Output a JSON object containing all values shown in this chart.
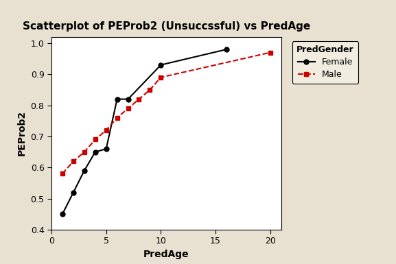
{
  "title": "Scatterplot of PEProb2 (Unsuccssful) vs PredAge",
  "xlabel": "PredAge",
  "ylabel": "PEProb2",
  "background_color": "#e8e0d0",
  "plot_background_color": "#ffffff",
  "female_x": [
    1,
    2,
    3,
    4,
    5,
    6,
    7,
    10,
    16
  ],
  "female_y": [
    0.45,
    0.52,
    0.59,
    0.65,
    0.66,
    0.82,
    0.82,
    0.93,
    0.98
  ],
  "male_x": [
    1,
    2,
    3,
    4,
    5,
    6,
    7,
    8,
    9,
    10,
    20
  ],
  "male_y": [
    0.58,
    0.62,
    0.65,
    0.69,
    0.72,
    0.76,
    0.79,
    0.82,
    0.85,
    0.89,
    0.97
  ],
  "female_color": "#000000",
  "male_color": "#cc0000",
  "female_label": "Female",
  "male_label": "Male",
  "legend_title": "PredGender",
  "xlim": [
    0,
    21
  ],
  "ylim": [
    0.4,
    1.02
  ],
  "xticks": [
    0,
    5,
    10,
    15,
    20
  ],
  "yticks": [
    0.4,
    0.5,
    0.6,
    0.7,
    0.8,
    0.9,
    1.0
  ],
  "title_fontsize": 11,
  "label_fontsize": 10,
  "tick_fontsize": 9,
  "legend_fontsize": 9
}
